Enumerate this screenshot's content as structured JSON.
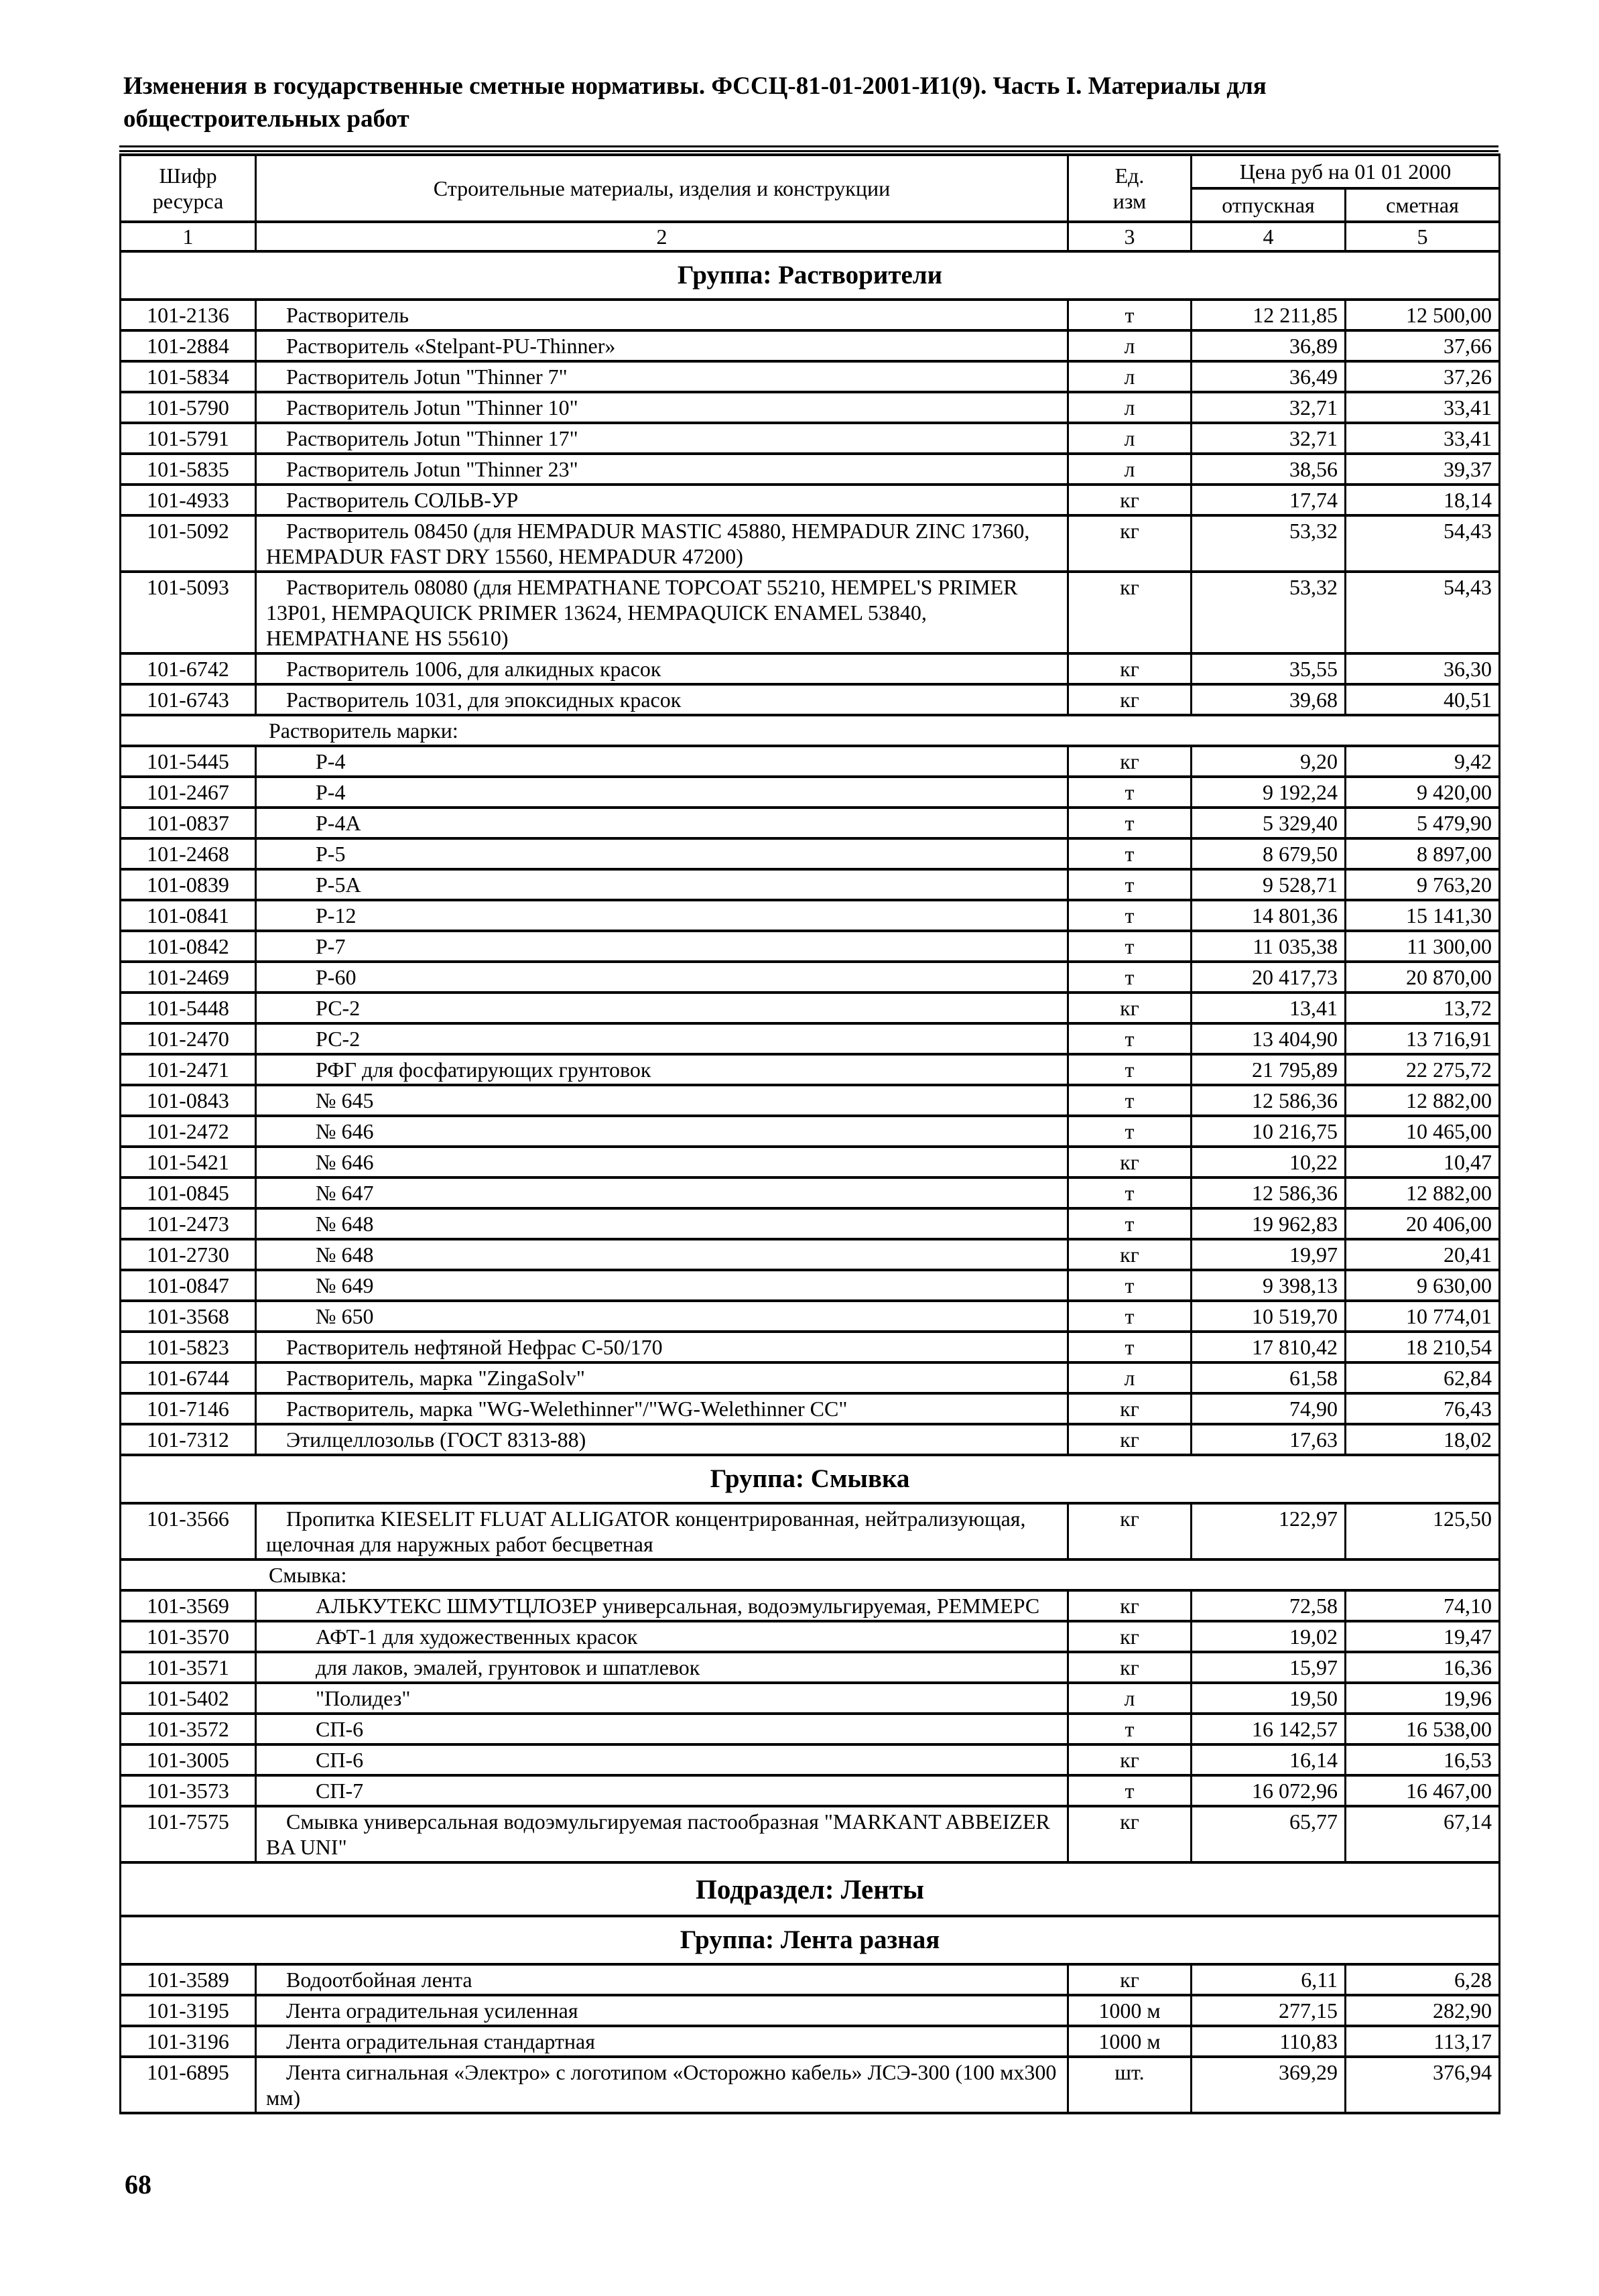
{
  "page": {
    "title_line1": "Изменения в государственные сметные нормативы. ФССЦ-81-01-2001-И1(9). Часть I. Материалы для",
    "title_line2": "общестроительных работ",
    "page_number": "68"
  },
  "table": {
    "header": {
      "code_line1": "Шифр",
      "code_line2": "ресурса",
      "materials": "Строительные материалы, изделия и конструкции",
      "unit_line1": "Ед.",
      "unit_line2": "изм",
      "price_group": "Цена руб  на 01 01 2000",
      "price_selling": "отпускная",
      "price_estimate": "сметная",
      "nums": [
        "1",
        "2",
        "3",
        "4",
        "5"
      ]
    },
    "rows": [
      {
        "type": "group",
        "label": "Группа: Растворители"
      },
      {
        "type": "item",
        "code": "101-2136",
        "desc": "Растворитель",
        "unit": "т",
        "sell": "12 211,85",
        "est": "12 500,00"
      },
      {
        "type": "item",
        "code": "101-2884",
        "desc": "Растворитель «Stelpant-PU-Thinner»",
        "unit": "л",
        "sell": "36,89",
        "est": "37,66"
      },
      {
        "type": "item",
        "code": "101-5834",
        "desc": "Растворитель Jotun \"Thinner 7\"",
        "unit": "л",
        "sell": "36,49",
        "est": "37,26"
      },
      {
        "type": "item",
        "code": "101-5790",
        "desc": "Растворитель Jotun \"Thinner 10\"",
        "unit": "л",
        "sell": "32,71",
        "est": "33,41"
      },
      {
        "type": "item",
        "code": "101-5791",
        "desc": "Растворитель Jotun \"Thinner 17\"",
        "unit": "л",
        "sell": "32,71",
        "est": "33,41"
      },
      {
        "type": "item",
        "code": "101-5835",
        "desc": "Растворитель Jotun \"Thinner 23\"",
        "unit": "л",
        "sell": "38,56",
        "est": "39,37"
      },
      {
        "type": "item",
        "code": "101-4933",
        "desc": "Растворитель СОЛЬВ-УР",
        "unit": "кг",
        "sell": "17,74",
        "est": "18,14"
      },
      {
        "type": "item",
        "code": "101-5092",
        "desc": "Растворитель 08450 (для HEMPADUR MASTIC 45880, HEMPADUR ZINC 17360, HEMPADUR FAST DRY 15560, HEMPADUR 47200)",
        "unit": "кг",
        "sell": "53,32",
        "est": "54,43"
      },
      {
        "type": "item",
        "code": "101-5093",
        "desc": "Растворитель 08080 (для HEMPATHANE TOPCOAT 55210, HEMPEL'S PRIMER 13P01, HEMPAQUICK PRIMER 13624, HEMPAQUICK ENAMEL 53840, HEMPATHANE HS 55610)",
        "unit": "кг",
        "sell": "53,32",
        "est": "54,43"
      },
      {
        "type": "item",
        "code": "101-6742",
        "desc": "Растворитель 1006, для алкидных красок",
        "unit": "кг",
        "sell": "35,55",
        "est": "36,30"
      },
      {
        "type": "item",
        "code": "101-6743",
        "desc": "Растворитель 1031, для эпоксидных красок",
        "unit": "кг",
        "sell": "39,68",
        "est": "40,51"
      },
      {
        "type": "label",
        "label": "Растворитель марки:"
      },
      {
        "type": "item",
        "sub": true,
        "code": "101-5445",
        "desc": "Р-4",
        "unit": "кг",
        "sell": "9,20",
        "est": "9,42"
      },
      {
        "type": "item",
        "sub": true,
        "code": "101-2467",
        "desc": "Р-4",
        "unit": "т",
        "sell": "9 192,24",
        "est": "9 420,00"
      },
      {
        "type": "item",
        "sub": true,
        "code": "101-0837",
        "desc": "Р-4А",
        "unit": "т",
        "sell": "5 329,40",
        "est": "5 479,90"
      },
      {
        "type": "item",
        "sub": true,
        "code": "101-2468",
        "desc": "Р-5",
        "unit": "т",
        "sell": "8 679,50",
        "est": "8 897,00"
      },
      {
        "type": "item",
        "sub": true,
        "code": "101-0839",
        "desc": "Р-5А",
        "unit": "т",
        "sell": "9 528,71",
        "est": "9 763,20"
      },
      {
        "type": "item",
        "sub": true,
        "code": "101-0841",
        "desc": "Р-12",
        "unit": "т",
        "sell": "14 801,36",
        "est": "15 141,30"
      },
      {
        "type": "item",
        "sub": true,
        "code": "101-0842",
        "desc": "Р-7",
        "unit": "т",
        "sell": "11 035,38",
        "est": "11 300,00"
      },
      {
        "type": "item",
        "sub": true,
        "code": "101-2469",
        "desc": "Р-60",
        "unit": "т",
        "sell": "20 417,73",
        "est": "20 870,00"
      },
      {
        "type": "item",
        "sub": true,
        "code": "101-5448",
        "desc": "РС-2",
        "unit": "кг",
        "sell": "13,41",
        "est": "13,72"
      },
      {
        "type": "item",
        "sub": true,
        "code": "101-2470",
        "desc": "РС-2",
        "unit": "т",
        "sell": "13 404,90",
        "est": "13 716,91"
      },
      {
        "type": "item",
        "sub": true,
        "code": "101-2471",
        "desc": "РФГ для фосфатирующих грунтовок",
        "unit": "т",
        "sell": "21 795,89",
        "est": "22 275,72"
      },
      {
        "type": "item",
        "sub": true,
        "code": "101-0843",
        "desc": "№ 645",
        "unit": "т",
        "sell": "12 586,36",
        "est": "12 882,00"
      },
      {
        "type": "item",
        "sub": true,
        "code": "101-2472",
        "desc": "№ 646",
        "unit": "т",
        "sell": "10 216,75",
        "est": "10 465,00"
      },
      {
        "type": "item",
        "sub": true,
        "code": "101-5421",
        "desc": "№ 646",
        "unit": "кг",
        "sell": "10,22",
        "est": "10,47"
      },
      {
        "type": "item",
        "sub": true,
        "code": "101-0845",
        "desc": "№ 647",
        "unit": "т",
        "sell": "12 586,36",
        "est": "12 882,00"
      },
      {
        "type": "item",
        "sub": true,
        "code": "101-2473",
        "desc": "№ 648",
        "unit": "т",
        "sell": "19 962,83",
        "est": "20 406,00"
      },
      {
        "type": "item",
        "sub": true,
        "code": "101-2730",
        "desc": "№ 648",
        "unit": "кг",
        "sell": "19,97",
        "est": "20,41"
      },
      {
        "type": "item",
        "sub": true,
        "code": "101-0847",
        "desc": "№ 649",
        "unit": "т",
        "sell": "9 398,13",
        "est": "9 630,00"
      },
      {
        "type": "item",
        "sub": true,
        "code": "101-3568",
        "desc": "№ 650",
        "unit": "т",
        "sell": "10 519,70",
        "est": "10 774,01"
      },
      {
        "type": "item",
        "code": "101-5823",
        "desc": "Растворитель нефтяной Нефрас С-50/170",
        "unit": "т",
        "sell": "17 810,42",
        "est": "18 210,54"
      },
      {
        "type": "item",
        "code": "101-6744",
        "desc": "Растворитель, марка \"ZingaSolv\"",
        "unit": "л",
        "sell": "61,58",
        "est": "62,84"
      },
      {
        "type": "item",
        "code": "101-7146",
        "desc": "Растворитель, марка \"WG-Welethinner\"/\"WG-Welethinner СС\"",
        "unit": "кг",
        "sell": "74,90",
        "est": "76,43"
      },
      {
        "type": "item",
        "code": "101-7312",
        "desc": "Этилцеллозольв (ГОСТ 8313-88)",
        "unit": "кг",
        "sell": "17,63",
        "est": "18,02"
      },
      {
        "type": "group",
        "label": "Группа: Смывка"
      },
      {
        "type": "item",
        "code": "101-3566",
        "desc": "Пропитка KIESELIT FLUAT ALLIGATOR концентрированная, нейтрализующая, щелочная для наружных работ бесцветная",
        "unit": "кг",
        "sell": "122,97",
        "est": "125,50"
      },
      {
        "type": "label",
        "label": "Смывка:"
      },
      {
        "type": "item",
        "sub": true,
        "code": "101-3569",
        "desc": "АЛЬКУТЕКС ШМУТЦЛОЗЕР универсальная, водоэмульгируемая, РЕММЕРС",
        "unit": "кг",
        "sell": "72,58",
        "est": "74,10"
      },
      {
        "type": "item",
        "sub": true,
        "code": "101-3570",
        "desc": "АФТ-1 для художественных красок",
        "unit": "кг",
        "sell": "19,02",
        "est": "19,47"
      },
      {
        "type": "item",
        "sub": true,
        "code": "101-3571",
        "desc": "для лаков, эмалей, грунтовок и шпатлевок",
        "unit": "кг",
        "sell": "15,97",
        "est": "16,36"
      },
      {
        "type": "item",
        "sub": true,
        "code": "101-5402",
        "desc": "\"Полидез\"",
        "unit": "л",
        "sell": "19,50",
        "est": "19,96"
      },
      {
        "type": "item",
        "sub": true,
        "code": "101-3572",
        "desc": "СП-6",
        "unit": "т",
        "sell": "16 142,57",
        "est": "16 538,00"
      },
      {
        "type": "item",
        "sub": true,
        "code": "101-3005",
        "desc": "СП-6",
        "unit": "кг",
        "sell": "16,14",
        "est": "16,53"
      },
      {
        "type": "item",
        "sub": true,
        "code": "101-3573",
        "desc": "СП-7",
        "unit": "т",
        "sell": "16 072,96",
        "est": "16 467,00"
      },
      {
        "type": "item",
        "code": "101-7575",
        "desc": "Смывка универсальная водоэмульгируемая пастообразная \"MARKANT ABBEIZER BA UNI\"",
        "unit": "кг",
        "sell": "65,77",
        "est": "67,14"
      },
      {
        "type": "subsection",
        "label": "Подраздел: Ленты"
      },
      {
        "type": "group",
        "label": "Группа: Лента разная"
      },
      {
        "type": "item",
        "code": "101-3589",
        "desc": "Водоотбойная лента",
        "unit": "кг",
        "sell": "6,11",
        "est": "6,28"
      },
      {
        "type": "item",
        "code": "101-3195",
        "desc": "Лента оградительная усиленная",
        "unit": "1000 м",
        "sell": "277,15",
        "est": "282,90"
      },
      {
        "type": "item",
        "code": "101-3196",
        "desc": "Лента оградительная стандартная",
        "unit": "1000 м",
        "sell": "110,83",
        "est": "113,17"
      },
      {
        "type": "item",
        "code": "101-6895",
        "desc": "Лента сигнальная «Электро» с логотипом «Осторожно кабель» ЛСЭ-300 (100 мх300 мм)",
        "unit": "шт.",
        "sell": "369,29",
        "est": "376,94"
      }
    ]
  }
}
